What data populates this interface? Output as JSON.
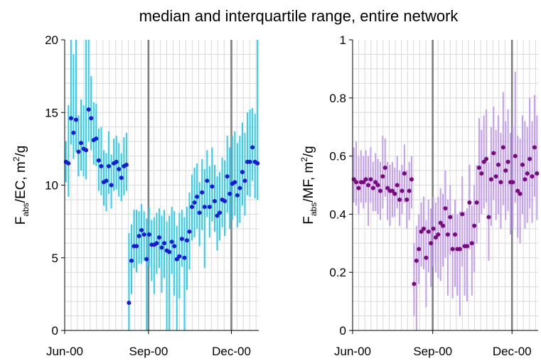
{
  "title": "median and interquartile range, entire network",
  "colors": {
    "left_whisker": "#2ccdf0",
    "left_marker": "#1a1ad6",
    "right_whisker": "#c39ef5",
    "right_marker": "#7a0a7a",
    "grid_minor": "#d9d9d9",
    "grid_major": "#808080",
    "axis": "#000000"
  },
  "chart_data": [
    {
      "type": "scatter",
      "title": "median and interquartile range, entire network",
      "ylabel": {
        "main": "F",
        "sub": "abs",
        "rest": "/EC,  m",
        "sup": "2",
        "end": "/g"
      },
      "ylim": [
        0,
        20
      ],
      "yticks": [
        0,
        5,
        10,
        15,
        20
      ],
      "xlim": [
        "2000-06-01",
        "2000-12-31"
      ],
      "xticks": [
        {
          "date": "2000-06-01",
          "label": "Jun-00"
        },
        {
          "date": "2000-09-01",
          "label": "Sep-00"
        },
        {
          "date": "2000-12-01",
          "label": "Dec-00"
        }
      ],
      "grid": true,
      "series": [
        {
          "kind": "median_with_iqr",
          "median": [
            11.6,
            11.5,
            14.6,
            13.6,
            14.5,
            12.3,
            12.9,
            12.5,
            12.4,
            15.2,
            14.6,
            13.1,
            13.2,
            11.7,
            11.3,
            10.2,
            10.3,
            11.3,
            10.0,
            11.5,
            11.6,
            11.1,
            10.5,
            11.3,
            11.4,
            1.9,
            4.8,
            5.8,
            5.8,
            6.5,
            6.9,
            6.6,
            4.9,
            6.6,
            5.9,
            5.9,
            6.0,
            6.4,
            5.7,
            6.0,
            5.5,
            5.4,
            6.1,
            5.8,
            4.9,
            5.1,
            6.3,
            5.0,
            6.2,
            6.8,
            8.5,
            8.8,
            9.2,
            8.1,
            9.5,
            8.5,
            10.3,
            8.5,
            9.9,
            8.9,
            7.9,
            8.1,
            9.0,
            8.9,
            10.6,
            9.4,
            10.1,
            10.2,
            9.3,
            9.8,
            10.9,
            10.3,
            11.6,
            11.6,
            12.6,
            11.6,
            11.5
          ],
          "q1": [
            10.2,
            9.2,
            12.8,
            11.8,
            12.3,
            10.6,
            11.0,
            10.6,
            10.4,
            13.0,
            12.4,
            11.4,
            11.3,
            9.6,
            9.3,
            8.6,
            8.2,
            9.4,
            8.4,
            9.6,
            9.7,
            9.2,
            8.9,
            9.3,
            9.6,
            0.0,
            2.5,
            4.3,
            4.0,
            4.6,
            4.6,
            4.8,
            0.0,
            4.4,
            3.4,
            2.5,
            3.9,
            4.3,
            2.6,
            3.6,
            0.0,
            0.0,
            3.9,
            2.4,
            0.0,
            2.2,
            4.4,
            0.0,
            2.8,
            4.2,
            6.2,
            6.4,
            7.0,
            5.8,
            6.9,
            4.3,
            7.8,
            6.4,
            7.5,
            6.8,
            5.5,
            6.2,
            7.1,
            6.5,
            8.1,
            7.0,
            7.6,
            7.9,
            7.1,
            7.4,
            8.6,
            7.9,
            9.3,
            9.2,
            10.3,
            9.1,
            9.0
          ],
          "q3": [
            13.0,
            15.5,
            20.0,
            19.0,
            20.0,
            14.8,
            15.9,
            15.5,
            20.0,
            20.0,
            17.5,
            15.7,
            15.6,
            13.9,
            14.0,
            12.4,
            12.2,
            13.7,
            12.1,
            13.2,
            13.4,
            12.9,
            12.2,
            13.3,
            13.6,
            6.7,
            7.3,
            8.3,
            8.3,
            8.2,
            8.7,
            8.2,
            7.7,
            8.5,
            7.6,
            7.8,
            8.1,
            8.4,
            7.9,
            8.3,
            7.5,
            7.9,
            8.5,
            8.2,
            7.2,
            8.1,
            8.3,
            7.8,
            8.5,
            9.5,
            10.7,
            11.2,
            11.5,
            10.2,
            11.8,
            11.1,
            12.4,
            11.3,
            12.6,
            11.4,
            10.6,
            10.9,
            11.9,
            11.7,
            13.4,
            12.6,
            13.4,
            13.7,
            12.9,
            13.4,
            14.3,
            13.6,
            15.0,
            15.2,
            15.3,
            14.9,
            20.0
          ]
        }
      ]
    },
    {
      "type": "scatter",
      "ylabel": {
        "main": "F",
        "sub": "abs",
        "rest": "/MF,  m",
        "sup": "2",
        "end": "/g"
      },
      "ylim": [
        0,
        1
      ],
      "yticks": [
        0,
        0.2,
        0.4,
        0.6,
        0.8,
        1
      ],
      "xlim": [
        "2000-06-01",
        "2000-12-31"
      ],
      "xticks": [
        {
          "date": "2000-06-01",
          "label": "Jun-00"
        },
        {
          "date": "2000-09-01",
          "label": "Sep-00"
        },
        {
          "date": "2000-12-01",
          "label": "Dec-00"
        }
      ],
      "grid": true,
      "series": [
        {
          "kind": "median_with_iqr",
          "median": [
            0.52,
            0.51,
            0.49,
            0.51,
            0.51,
            0.52,
            0.5,
            0.52,
            0.49,
            0.51,
            0.5,
            0.48,
            0.53,
            0.56,
            0.49,
            0.48,
            0.48,
            0.47,
            0.5,
            0.45,
            0.48,
            0.54,
            0.45,
            0.48,
            0.52,
            0.16,
            0.24,
            0.28,
            0.34,
            0.35,
            0.25,
            0.34,
            0.3,
            0.35,
            0.32,
            0.33,
            0.37,
            0.36,
            0.42,
            0.33,
            0.39,
            0.28,
            0.33,
            0.28,
            0.28,
            0.4,
            0.29,
            0.29,
            0.44,
            0.3,
            0.36,
            0.44,
            0.56,
            0.54,
            0.58,
            0.59,
            0.39,
            0.52,
            0.61,
            0.53,
            0.57,
            0.51,
            0.63,
            0.55,
            0.58,
            0.51,
            0.51,
            0.6,
            0.48,
            0.47,
            0.57,
            0.52,
            0.54,
            0.59,
            0.53,
            0.63,
            0.54
          ],
          "q1": [
            0.44,
            0.43,
            0.4,
            0.44,
            0.42,
            0.44,
            0.36,
            0.44,
            0.41,
            0.41,
            0.4,
            0.38,
            0.42,
            0.46,
            0.38,
            0.36,
            0.39,
            0.39,
            0.42,
            0.36,
            0.4,
            0.44,
            0.35,
            0.38,
            0.42,
            0.05,
            0.0,
            0.16,
            0.22,
            0.21,
            0.08,
            0.2,
            0.15,
            0.22,
            0.2,
            0.18,
            0.17,
            0.22,
            0.25,
            0.12,
            0.26,
            0.11,
            0.15,
            0.12,
            0.05,
            0.22,
            0.12,
            0.1,
            0.28,
            0.12,
            0.2,
            0.3,
            0.37,
            0.4,
            0.42,
            0.44,
            0.24,
            0.36,
            0.45,
            0.38,
            0.4,
            0.35,
            0.43,
            0.38,
            0.41,
            0.33,
            0.35,
            0.44,
            0.32,
            0.3,
            0.4,
            0.35,
            0.37,
            0.42,
            0.37,
            0.46,
            0.38
          ],
          "q3": [
            0.63,
            0.65,
            0.6,
            0.62,
            0.6,
            0.62,
            0.6,
            0.63,
            0.58,
            0.61,
            0.59,
            0.58,
            0.67,
            0.66,
            0.58,
            0.57,
            0.58,
            0.56,
            0.6,
            0.55,
            0.57,
            0.64,
            0.55,
            0.58,
            0.6,
            0.3,
            0.36,
            0.4,
            0.44,
            0.46,
            0.38,
            0.45,
            0.42,
            0.46,
            0.44,
            0.46,
            0.49,
            0.47,
            0.55,
            0.45,
            0.5,
            0.4,
            0.45,
            0.4,
            0.41,
            0.53,
            0.41,
            0.42,
            0.57,
            0.43,
            0.5,
            0.57,
            0.73,
            0.69,
            0.74,
            0.76,
            0.58,
            0.7,
            0.77,
            0.69,
            0.74,
            0.68,
            0.82,
            0.72,
            0.76,
            0.68,
            0.7,
            0.89,
            0.67,
            0.66,
            0.74,
            0.72,
            0.7,
            0.8,
            0.72,
            0.81,
            0.74
          ]
        }
      ]
    }
  ]
}
